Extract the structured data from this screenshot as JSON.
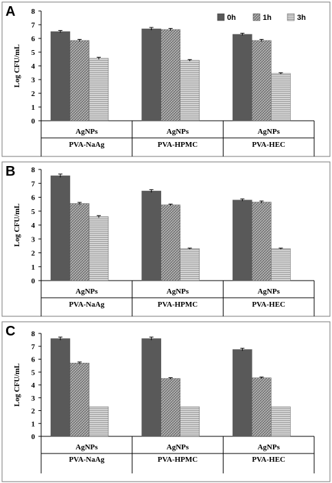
{
  "series_styles": [
    {
      "color": "#595959",
      "pattern": "solid"
    },
    {
      "color": "#8c8c8c",
      "pattern": "crosshatch"
    },
    {
      "color": "#9a9a9a",
      "pattern": "horizontal-lines"
    }
  ],
  "chart_data": [
    {
      "type": "bar",
      "panel_label": "A",
      "ylabel": "Log CFU/mL",
      "ylim": [
        0,
        8
      ],
      "yticks": [
        0,
        1,
        2,
        3,
        4,
        5,
        6,
        7,
        8
      ],
      "grid": false,
      "legend": {
        "placement": "top-right",
        "entries": [
          "0h",
          "1h",
          "3h"
        ]
      },
      "categories": [
        "AgNPs",
        "AgNPs",
        "AgNPs"
      ],
      "groups": [
        "PVA-NaAg",
        "PVA-HPMC",
        "PVA-HEC"
      ],
      "series": [
        {
          "name": "0h",
          "values": [
            6.5,
            6.7,
            6.3
          ],
          "errors": [
            0.08,
            0.1,
            0.08
          ]
        },
        {
          "name": "1h",
          "values": [
            5.85,
            6.65,
            5.85
          ],
          "errors": [
            0.08,
            0.08,
            0.08
          ]
        },
        {
          "name": "3h",
          "values": [
            4.55,
            4.4,
            3.45
          ],
          "errors": [
            0.08,
            0.06,
            0.05
          ]
        }
      ]
    },
    {
      "type": "bar",
      "panel_label": "B",
      "ylabel": "Log CFU/mL",
      "ylim": [
        0,
        8
      ],
      "yticks": [
        0,
        1,
        2,
        3,
        4,
        5,
        6,
        7,
        8
      ],
      "grid": false,
      "categories": [
        "AgNPs",
        "AgNPs",
        "AgNPs"
      ],
      "groups": [
        "PVA-NaAg",
        "PVA-HPMC",
        "PVA-HEC"
      ],
      "series": [
        {
          "name": "0h",
          "values": [
            7.55,
            6.45,
            5.8
          ],
          "errors": [
            0.12,
            0.1,
            0.08
          ]
        },
        {
          "name": "1h",
          "values": [
            5.55,
            5.45,
            5.65
          ],
          "errors": [
            0.08,
            0.06,
            0.08
          ]
        },
        {
          "name": "3h",
          "values": [
            4.6,
            2.3,
            2.3
          ],
          "errors": [
            0.08,
            0.04,
            0.04
          ]
        }
      ]
    },
    {
      "type": "bar",
      "panel_label": "C",
      "ylabel": "Log CFU/mL",
      "ylim": [
        0,
        8
      ],
      "yticks": [
        0,
        1,
        2,
        3,
        4,
        5,
        6,
        7,
        8
      ],
      "grid": false,
      "categories": [
        "AgNPs",
        "AgNPs",
        "AgNPs"
      ],
      "groups": [
        "PVA-NaAg",
        "PVA-HPMC",
        "PVA-HEC"
      ],
      "series": [
        {
          "name": "0h",
          "values": [
            7.6,
            7.6,
            6.75
          ],
          "errors": [
            0.12,
            0.12,
            0.1
          ]
        },
        {
          "name": "1h",
          "values": [
            5.7,
            4.5,
            4.55
          ],
          "errors": [
            0.08,
            0.06,
            0.06
          ]
        },
        {
          "name": "3h",
          "values": [
            2.3,
            2.3,
            2.3
          ],
          "errors": [
            0.0,
            0.0,
            0.0
          ]
        }
      ]
    }
  ]
}
